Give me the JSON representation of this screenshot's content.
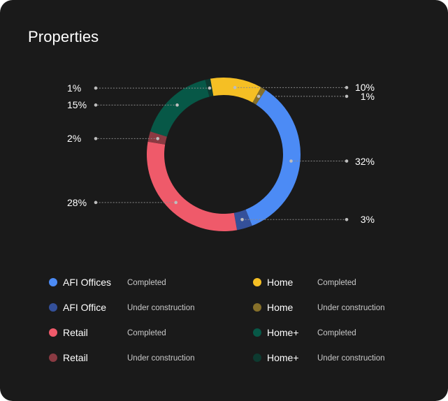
{
  "title": "Properties",
  "chart_data": {
    "type": "pie",
    "donut": true,
    "slices": [
      {
        "label": "Home",
        "status": "Completed",
        "value": 10,
        "label_text": "10%",
        "color": "#f5bf24"
      },
      {
        "label": "Home",
        "status": "Under construction",
        "value": 1,
        "label_text": "1%",
        "color": "#86702a"
      },
      {
        "label": "AFI Offices",
        "status": "Completed",
        "value": 32,
        "label_text": "32%",
        "color": "#4c8bf5"
      },
      {
        "label": "AFI Office",
        "status": "Under construction",
        "value": 3,
        "label_text": "3%",
        "color": "#34509a"
      },
      {
        "label": "Retail",
        "status": "Completed",
        "value": 28,
        "label_text": "28%",
        "color": "#ef5a6a"
      },
      {
        "label": "Retail",
        "status": "Under construction",
        "value": 2,
        "label_text": "2%",
        "color": "#8a3a42"
      },
      {
        "label": "Home+",
        "status": "Completed",
        "value": 15,
        "label_text": "15%",
        "color": "#075847"
      },
      {
        "label": "Home+",
        "status": "Under construction",
        "value": 1,
        "label_text": "1%",
        "color": "#0d3a30"
      }
    ]
  },
  "legend": [
    {
      "name": "AFI Offices",
      "status": "Completed",
      "color": "#4c8bf5"
    },
    {
      "name": "AFI Office",
      "status": "Under construction",
      "color": "#34509a"
    },
    {
      "name": "Retail",
      "status": "Completed",
      "color": "#ef5a6a"
    },
    {
      "name": "Retail",
      "status": "Under construction",
      "color": "#8a3a42"
    },
    {
      "name": "Home",
      "status": "Completed",
      "color": "#f5bf24"
    },
    {
      "name": "Home",
      "status": "Under construction",
      "color": "#86702a"
    },
    {
      "name": "Home+",
      "status": "Completed",
      "color": "#075847"
    },
    {
      "name": "Home+",
      "status": "Under construction",
      "color": "#0d3a30"
    }
  ]
}
